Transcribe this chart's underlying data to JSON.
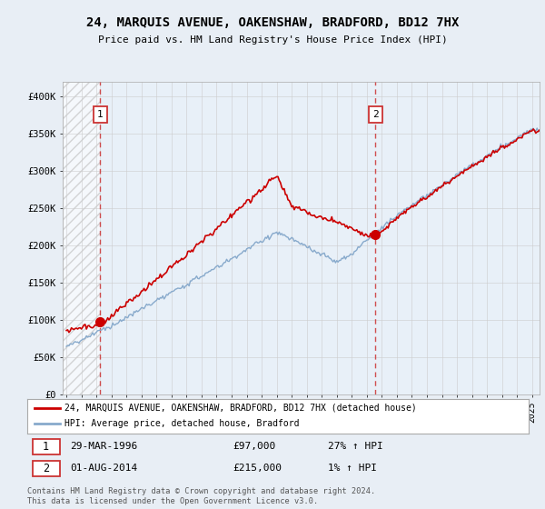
{
  "title": "24, MARQUIS AVENUE, OAKENSHAW, BRADFORD, BD12 7HX",
  "subtitle": "Price paid vs. HM Land Registry's House Price Index (HPI)",
  "sale1_x": 1996.25,
  "sale1_price": 97000,
  "sale2_x": 2014.58,
  "sale2_price": 215000,
  "ylim": [
    0,
    420000
  ],
  "yticks": [
    0,
    50000,
    100000,
    150000,
    200000,
    250000,
    300000,
    350000,
    400000
  ],
  "ytick_labels": [
    "£0",
    "£50K",
    "£100K",
    "£150K",
    "£200K",
    "£250K",
    "£300K",
    "£350K",
    "£400K"
  ],
  "xlim_start": 1993.75,
  "xlim_end": 2025.5,
  "legend1_text": "24, MARQUIS AVENUE, OAKENSHAW, BRADFORD, BD12 7HX (detached house)",
  "legend2_text": "HPI: Average price, detached house, Bradford",
  "footnote": "Contains HM Land Registry data © Crown copyright and database right 2024.\nThis data is licensed under the Open Government Licence v3.0.",
  "sale_color": "#cc0000",
  "hpi_color": "#88aacc",
  "bg_color": "#e8eef5",
  "plot_bg": "#e8f0f8",
  "hatch_color": "#bbbbbb",
  "grid_color": "#cccccc",
  "dashed_line_color": "#cc3333"
}
